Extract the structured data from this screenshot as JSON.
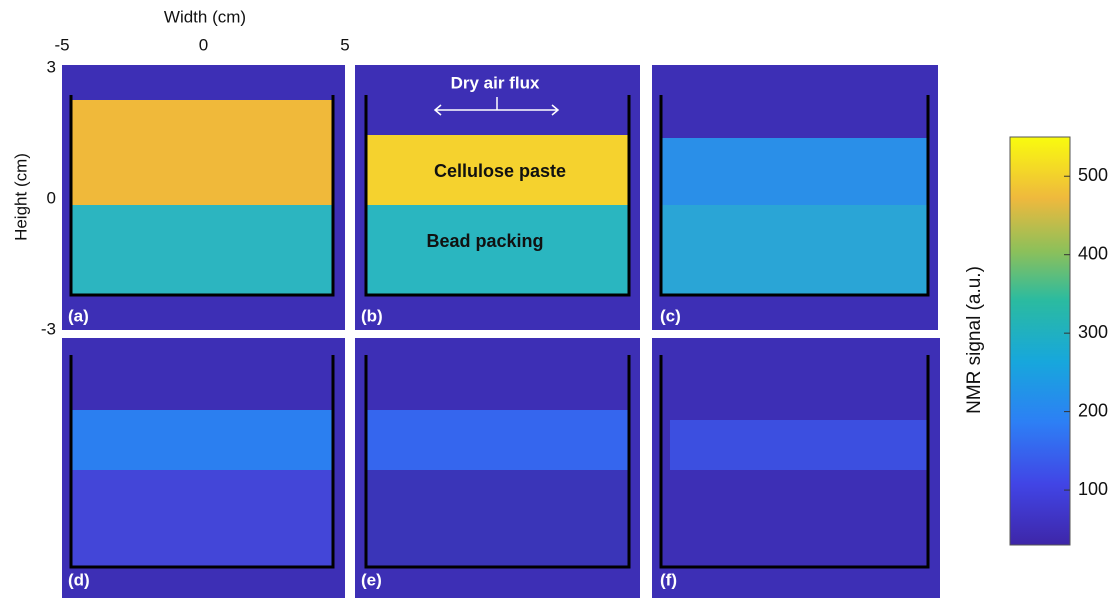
{
  "figure": {
    "x_axis": {
      "label": "Width (cm)",
      "lim": [
        -5,
        5
      ],
      "ticks": [
        -5,
        0,
        5
      ]
    },
    "y_axis": {
      "label": "Height (cm)",
      "lim": [
        -3,
        3
      ],
      "ticks": [
        3,
        0,
        -3
      ]
    },
    "panels": [
      {
        "label": "(a)"
      },
      {
        "label": "(b)",
        "annotations": [
          "Dry air flux",
          "Cellulose paste",
          "Bead packing"
        ]
      },
      {
        "label": "(c)"
      },
      {
        "label": "(d)"
      },
      {
        "label": "(e)"
      },
      {
        "label": "(f)"
      }
    ],
    "colorbar": {
      "label": "NMR signal (a.u.)",
      "lim": [
        30,
        550
      ],
      "ticks": [
        100,
        200,
        300,
        400,
        500
      ]
    }
  }
}
